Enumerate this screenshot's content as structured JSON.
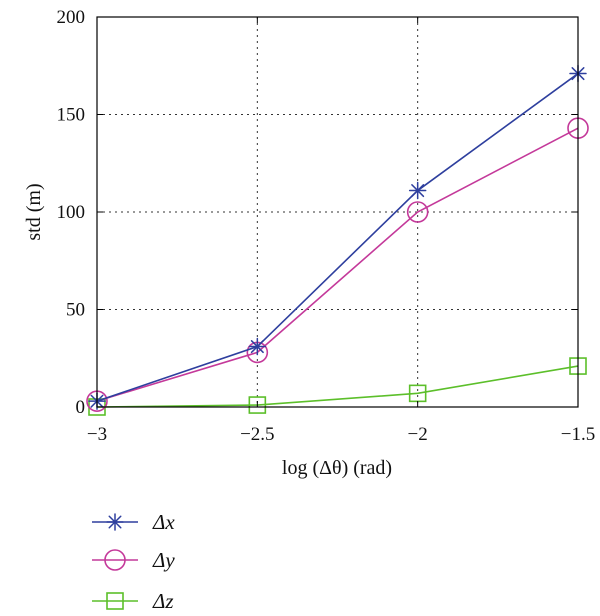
{
  "chart_data": {
    "type": "line",
    "xlabel": "log (Δθ) (rad)",
    "ylabel": "std (m)",
    "x": [
      -3,
      -2.5,
      -2,
      -1.5
    ],
    "xlim": [
      -3,
      -1.5
    ],
    "ylim": [
      0,
      200
    ],
    "xticks": [
      -3,
      -2.5,
      -2,
      -1.5
    ],
    "xtick_labels": [
      "−3",
      "−2.5",
      "−2",
      "−1.5"
    ],
    "yticks": [
      0,
      50,
      100,
      150,
      200
    ],
    "ytick_labels": [
      "0",
      "50",
      "100",
      "150",
      "200"
    ],
    "grid": true,
    "legend_position": "bottom-left, below plot",
    "series": [
      {
        "name": "Δx",
        "marker": "asterisk",
        "color": "#2e3f9e",
        "values": [
          3,
          31,
          111,
          171
        ]
      },
      {
        "name": "Δy",
        "marker": "circle",
        "color": "#c4399a",
        "values": [
          3,
          28,
          100,
          143
        ]
      },
      {
        "name": "Δz",
        "marker": "square",
        "color": "#5cbf2a",
        "values": [
          0,
          1,
          7,
          21
        ]
      }
    ]
  }
}
